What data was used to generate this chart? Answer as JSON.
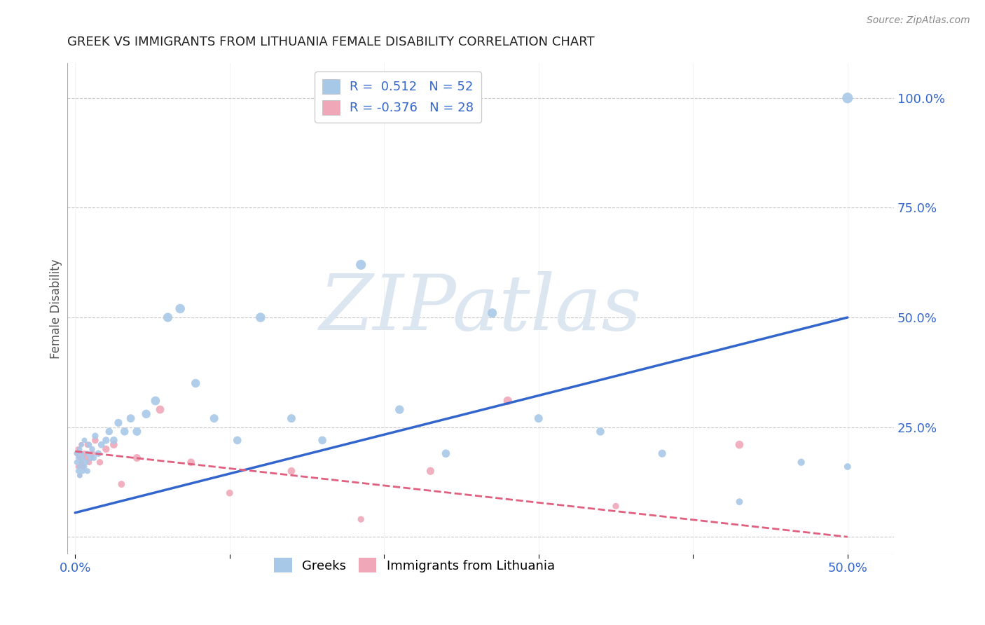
{
  "title": "GREEK VS IMMIGRANTS FROM LITHUANIA FEMALE DISABILITY CORRELATION CHART",
  "source_text": "Source: ZipAtlas.com",
  "ylabel": "Female Disability",
  "xlabel": "",
  "xlim": [
    -0.005,
    0.53
  ],
  "ylim": [
    -0.04,
    1.08
  ],
  "xticks": [
    0.0,
    0.1,
    0.2,
    0.3,
    0.4,
    0.5
  ],
  "xticklabels": [
    "0.0%",
    "",
    "",
    "",
    "",
    "50.0%"
  ],
  "ytick_positions": [
    0.0,
    0.25,
    0.5,
    0.75,
    1.0
  ],
  "ytick_labels": [
    "",
    "25.0%",
    "50.0%",
    "75.0%",
    "100.0%"
  ],
  "background_color": "#ffffff",
  "grid_color": "#c8c8c8",
  "watermark_text": "ZIPatlas",
  "watermark_color": "#dce6f0",
  "greek_color": "#a8c8e8",
  "greek_line_color": "#3366cc",
  "lithuanian_color": "#f0a8b8",
  "lithuanian_line_color": "#e06080",
  "legend_R_greek": "0.512",
  "legend_N_greek": "52",
  "legend_R_lith": "-0.376",
  "legend_N_lith": "28",
  "legend_color": "#3366cc",
  "greek_scatter_x": [
    0.001,
    0.001,
    0.002,
    0.002,
    0.003,
    0.003,
    0.003,
    0.004,
    0.004,
    0.004,
    0.005,
    0.005,
    0.006,
    0.006,
    0.007,
    0.008,
    0.008,
    0.009,
    0.01,
    0.011,
    0.012,
    0.013,
    0.015,
    0.017,
    0.02,
    0.022,
    0.025,
    0.028,
    0.032,
    0.036,
    0.04,
    0.046,
    0.052,
    0.06,
    0.068,
    0.078,
    0.09,
    0.105,
    0.12,
    0.14,
    0.16,
    0.185,
    0.21,
    0.24,
    0.27,
    0.3,
    0.34,
    0.38,
    0.43,
    0.47,
    0.5,
    0.5
  ],
  "greek_scatter_y": [
    0.17,
    0.19,
    0.15,
    0.18,
    0.14,
    0.16,
    0.2,
    0.17,
    0.19,
    0.21,
    0.15,
    0.18,
    0.16,
    0.22,
    0.17,
    0.15,
    0.19,
    0.21,
    0.18,
    0.2,
    0.18,
    0.23,
    0.19,
    0.21,
    0.22,
    0.24,
    0.22,
    0.26,
    0.24,
    0.27,
    0.24,
    0.28,
    0.31,
    0.5,
    0.52,
    0.35,
    0.27,
    0.22,
    0.5,
    0.27,
    0.22,
    0.62,
    0.29,
    0.19,
    0.51,
    0.27,
    0.24,
    0.19,
    0.08,
    0.17,
    0.16,
    1.0
  ],
  "greek_scatter_sizes": [
    30,
    28,
    30,
    28,
    32,
    30,
    28,
    32,
    30,
    28,
    35,
    32,
    35,
    32,
    38,
    35,
    32,
    38,
    40,
    38,
    42,
    45,
    48,
    50,
    55,
    58,
    60,
    65,
    68,
    72,
    75,
    80,
    85,
    90,
    95,
    80,
    75,
    70,
    95,
    75,
    70,
    105,
    80,
    70,
    90,
    75,
    70,
    65,
    50,
    55,
    50,
    120
  ],
  "lith_scatter_x": [
    0.001,
    0.002,
    0.002,
    0.003,
    0.003,
    0.004,
    0.004,
    0.005,
    0.006,
    0.007,
    0.008,
    0.009,
    0.011,
    0.013,
    0.016,
    0.02,
    0.025,
    0.03,
    0.04,
    0.055,
    0.075,
    0.1,
    0.14,
    0.185,
    0.23,
    0.28,
    0.35,
    0.43
  ],
  "lith_scatter_y": [
    0.19,
    0.16,
    0.2,
    0.14,
    0.18,
    0.17,
    0.21,
    0.16,
    0.19,
    0.18,
    0.21,
    0.17,
    0.19,
    0.22,
    0.17,
    0.2,
    0.21,
    0.12,
    0.18,
    0.29,
    0.17,
    0.1,
    0.15,
    0.04,
    0.15,
    0.31,
    0.07,
    0.21
  ],
  "lith_scatter_sizes": [
    32,
    30,
    32,
    28,
    30,
    32,
    30,
    35,
    38,
    35,
    40,
    38,
    45,
    48,
    45,
    55,
    60,
    50,
    62,
    72,
    60,
    50,
    60,
    45,
    65,
    80,
    45,
    70
  ],
  "greek_trendline_x": [
    0.0,
    0.5
  ],
  "greek_trendline_y": [
    0.055,
    0.5
  ],
  "lith_trendline_x": [
    0.0,
    0.5
  ],
  "lith_trendline_y": [
    0.195,
    0.0
  ]
}
